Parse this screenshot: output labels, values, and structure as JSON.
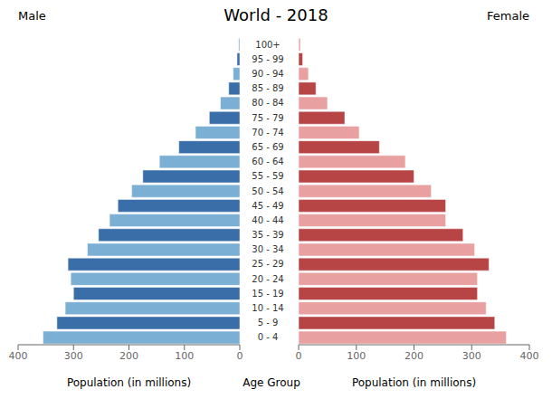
{
  "chart_data": {
    "type": "pyramid",
    "title": "World - 2018",
    "orientation": "horizontal",
    "categories": [
      "0 - 4",
      "5 - 9",
      "10 - 14",
      "15 - 19",
      "20 - 24",
      "25 - 29",
      "30 - 34",
      "35 - 39",
      "40 - 44",
      "45 - 49",
      "50 - 54",
      "55 - 59",
      "60 - 64",
      "65 - 69",
      "70 - 74",
      "75 - 79",
      "80 - 84",
      "85 - 89",
      "90 - 94",
      "95 - 99",
      "100+"
    ],
    "series": [
      {
        "name": "Male",
        "colors": [
          "#7bafd4",
          "#3a6ea8",
          "#7bafd4",
          "#3a6ea8",
          "#7bafd4",
          "#3a6ea8",
          "#7bafd4",
          "#3a6ea8",
          "#7bafd4",
          "#3a6ea8",
          "#7bafd4",
          "#3a6ea8",
          "#7bafd4",
          "#3a6ea8",
          "#7bafd4",
          "#3a6ea8",
          "#7bafd4",
          "#3a6ea8",
          "#7bafd4",
          "#3a6ea8",
          "#7bafd4"
        ],
        "values": [
          355,
          330,
          315,
          300,
          305,
          310,
          275,
          255,
          235,
          220,
          195,
          175,
          145,
          110,
          80,
          55,
          35,
          20,
          12,
          5,
          2
        ]
      },
      {
        "name": "Female",
        "colors": [
          "#e8a0a0",
          "#b84545",
          "#e8a0a0",
          "#b84545",
          "#e8a0a0",
          "#b84545",
          "#e8a0a0",
          "#b84545",
          "#e8a0a0",
          "#b84545",
          "#e8a0a0",
          "#b84545",
          "#e8a0a0",
          "#b84545",
          "#e8a0a0",
          "#b84545",
          "#e8a0a0",
          "#b84545",
          "#e8a0a0",
          "#b84545",
          "#e8a0a0"
        ],
        "values": [
          360,
          340,
          325,
          310,
          310,
          330,
          305,
          285,
          255,
          255,
          230,
          200,
          185,
          140,
          105,
          80,
          50,
          30,
          17,
          7,
          3
        ]
      }
    ],
    "xlabel_left": "Population (in millions)",
    "xlabel_center": "Age Group",
    "xlabel_right": "Population (in millions)",
    "xlim": [
      0,
      400
    ],
    "xticks": [
      0,
      100,
      200,
      300,
      400
    ]
  }
}
